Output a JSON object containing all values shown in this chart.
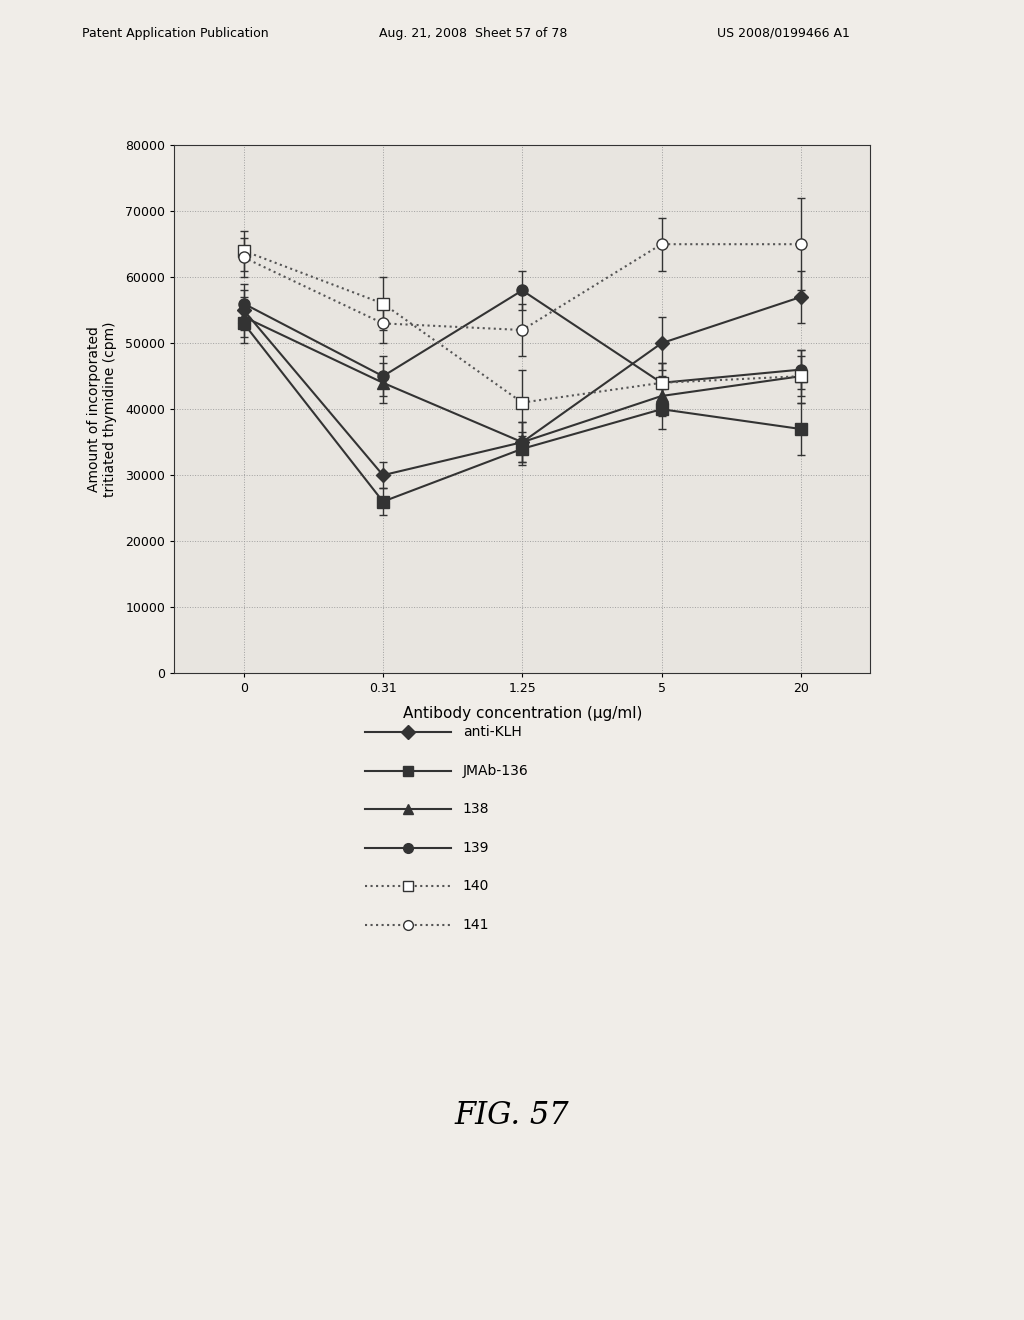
{
  "x_positions": [
    0,
    1,
    2,
    3,
    4
  ],
  "x_labels": [
    "0",
    "0.31",
    "1.25",
    "5",
    "20"
  ],
  "series": [
    {
      "label": "anti-KLH",
      "y": [
        55000,
        30000,
        35000,
        50000,
        57000
      ],
      "yerr": [
        3000,
        2000,
        3000,
        4000,
        4000
      ],
      "color": "#333333",
      "marker": "D",
      "linestyle": "-",
      "markersize": 7,
      "linewidth": 1.5,
      "markerfacecolor": "#333333",
      "markeredgecolor": "#333333"
    },
    {
      "label": "JMAb-136",
      "y": [
        53000,
        26000,
        34000,
        40000,
        37000
      ],
      "yerr": [
        3000,
        2000,
        2500,
        3000,
        4000
      ],
      "color": "#333333",
      "marker": "s",
      "linestyle": "-",
      "markersize": 8,
      "linewidth": 1.5,
      "markerfacecolor": "#333333",
      "markeredgecolor": "#333333"
    },
    {
      "label": "138",
      "y": [
        54000,
        44000,
        35000,
        42000,
        45000
      ],
      "yerr": [
        3000,
        3000,
        3000,
        3000,
        3000
      ],
      "color": "#333333",
      "marker": "^",
      "linestyle": "-",
      "markersize": 8,
      "linewidth": 1.5,
      "markerfacecolor": "#333333",
      "markeredgecolor": "#333333"
    },
    {
      "label": "139",
      "y": [
        56000,
        45000,
        58000,
        44000,
        46000
      ],
      "yerr": [
        3000,
        3000,
        3000,
        3000,
        3000
      ],
      "color": "#333333",
      "marker": "o",
      "linestyle": "-",
      "markersize": 8,
      "linewidth": 1.5,
      "markerfacecolor": "#333333",
      "markeredgecolor": "#333333"
    },
    {
      "label": "140",
      "y": [
        64000,
        56000,
        41000,
        44000,
        45000
      ],
      "yerr": [
        3000,
        4000,
        5000,
        3000,
        4000
      ],
      "color": "#555555",
      "marker": "s",
      "linestyle": ":",
      "markersize": 8,
      "linewidth": 1.5,
      "markerfacecolor": "white",
      "markeredgecolor": "#333333"
    },
    {
      "label": "141",
      "y": [
        63000,
        53000,
        52000,
        65000,
        65000
      ],
      "yerr": [
        3000,
        3000,
        4000,
        4000,
        7000
      ],
      "color": "#555555",
      "marker": "o",
      "linestyle": ":",
      "markersize": 8,
      "linewidth": 1.5,
      "markerfacecolor": "white",
      "markeredgecolor": "#333333"
    }
  ],
  "ylabel": "Amount of incorporated\ntritiated thymidine (cpm)",
  "xlabel": "Antibody concentration (μg/ml)",
  "ylim": [
    0,
    80000
  ],
  "yticks": [
    0,
    10000,
    20000,
    30000,
    40000,
    50000,
    60000,
    70000,
    80000
  ],
  "fig_title": "FIG. 57",
  "header_left": "Patent Application Publication",
  "header_mid": "Aug. 21, 2008  Sheet 57 of 78",
  "header_right": "US 2008/0199466 A1",
  "background_color": "#f0ede8",
  "plot_bg_color": "#e8e5e0"
}
